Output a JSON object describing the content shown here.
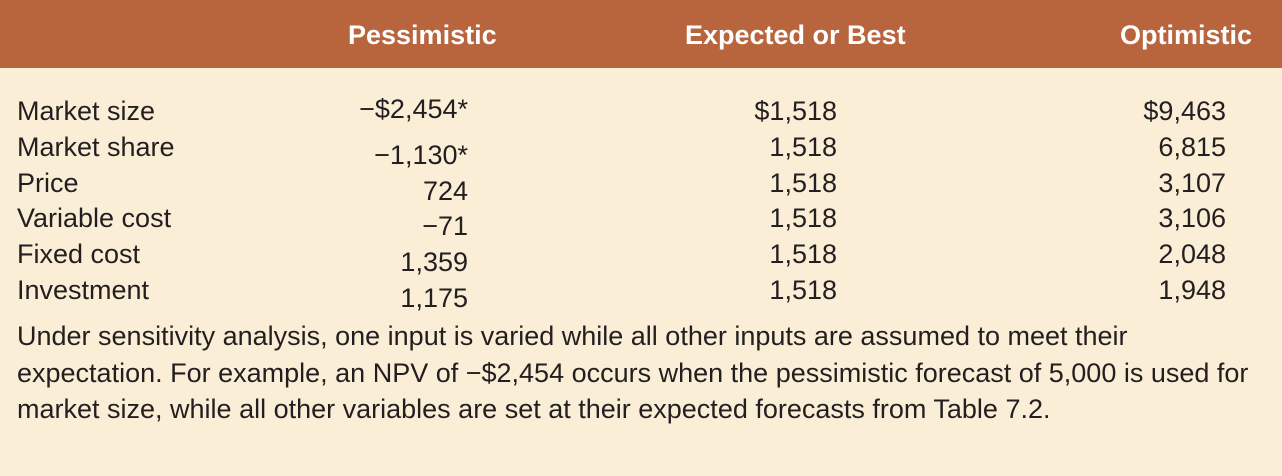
{
  "columns": [
    "Pessimistic",
    "Expected or Best",
    "Optimistic"
  ],
  "rows": [
    {
      "label": "Market size",
      "values": [
        "−$2,454*",
        "$1,518",
        "$9,463"
      ]
    },
    {
      "label": "Market share",
      "values": [
        "−1,130*",
        "1,518",
        "6,815"
      ]
    },
    {
      "label": "Price",
      "values": [
        "724",
        "1,518",
        "3,107"
      ]
    },
    {
      "label": "Variable cost",
      "values": [
        "−71",
        "1,518",
        "3,106"
      ]
    },
    {
      "label": "Fixed cost",
      "values": [
        "1,359",
        "1,518",
        "2,048"
      ]
    },
    {
      "label": "Investment",
      "values": [
        "1,175",
        "1,518",
        "1,948"
      ]
    }
  ],
  "footnote": "Under sensitivity analysis, one input is varied while all other inputs are assumed to meet their expectation. For example, an NPV of −$2,454 occurs when the pessimistic forecast of 5,000 is used for market size, while all other variables are set at their expected forecasts from Table 7.2."
}
